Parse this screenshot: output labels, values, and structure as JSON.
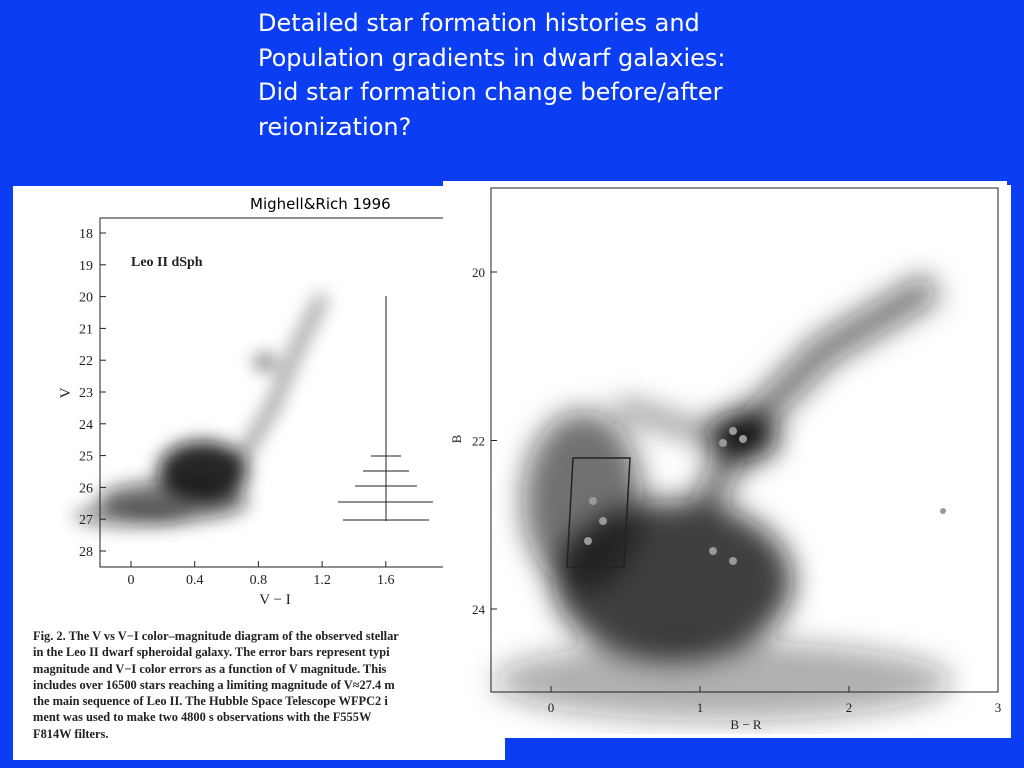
{
  "title": [
    "Detailed star formation histories and",
    "Population gradients in dwarf galaxies:",
    "Did star formation change before/after",
    "reionization?"
  ],
  "credit": "Mighell&Rich 1996",
  "left_figure": {
    "label": "Leo II dSph",
    "x_axis_label": "V − I",
    "y_axis_label": "V",
    "x_ticks": [
      "0",
      "0.4",
      "0.8",
      "1.2",
      "1.6"
    ],
    "y_ticks": [
      "18",
      "19",
      "20",
      "21",
      "22",
      "23",
      "24",
      "25",
      "26",
      "27",
      "28"
    ],
    "caption": [
      "Fig. 2. The V vs V−I color–magnitude diagram of the observed stellar",
      "in the Leo II dwarf spheroidal galaxy. The error bars represent typi",
      "magnitude and V−I color errors as a function of V magnitude. This",
      "includes over 16500 stars reaching a limiting magnitude of V≈27.4 m",
      "the main sequence of Leo II. The Hubble Space Telescope WFPC2 i",
      "ment was used to make two 4800 s observations with the F555W",
      "F814W filters."
    ]
  },
  "right_figure": {
    "x_axis_label": "B − R",
    "y_axis_label": "B",
    "x_ticks": [
      "0",
      "1",
      "2",
      "3"
    ],
    "y_ticks": [
      "20",
      "22",
      "24"
    ]
  }
}
